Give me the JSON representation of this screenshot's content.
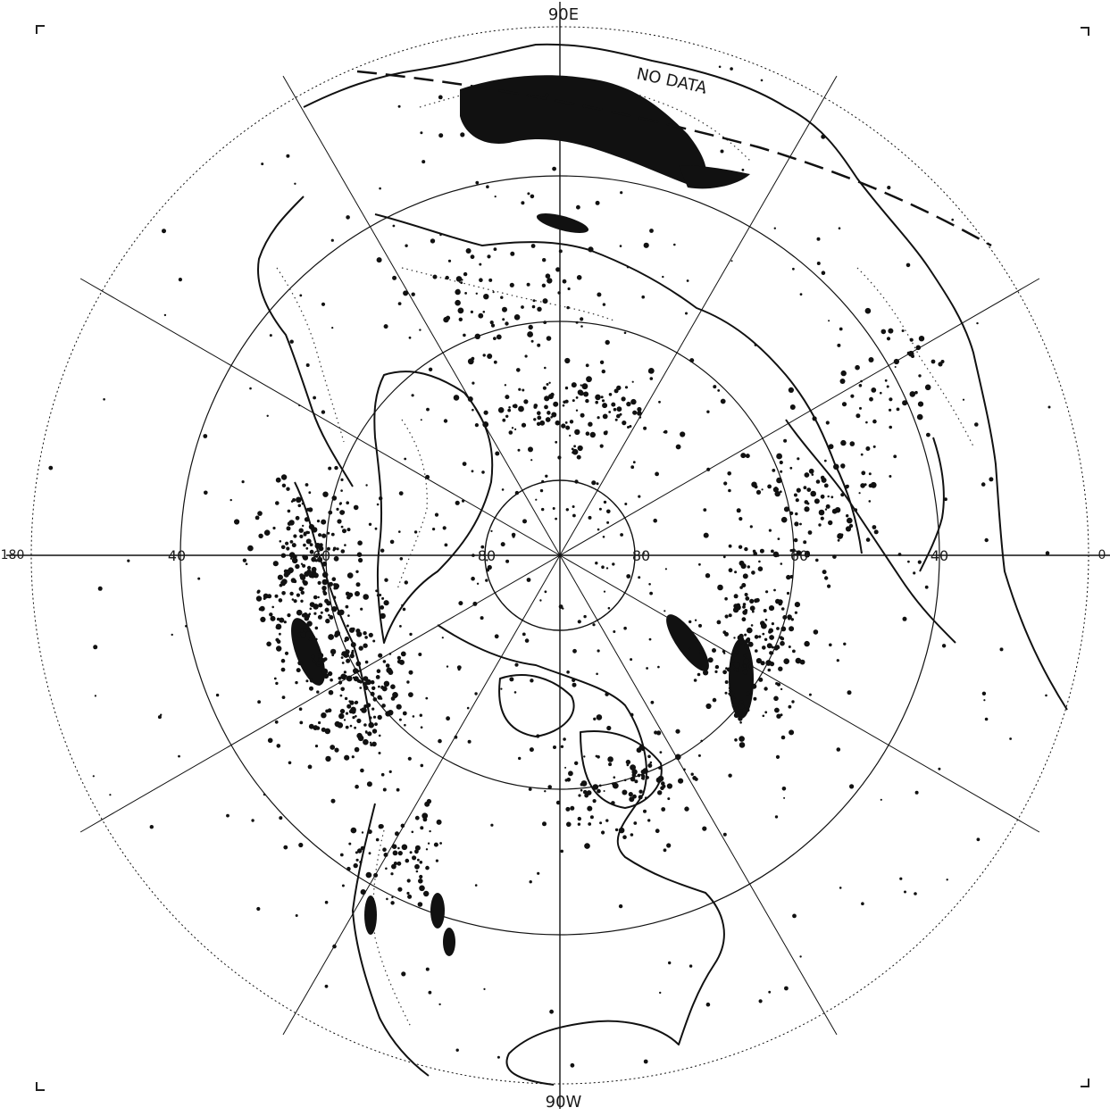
{
  "map": {
    "labels": {
      "top": "90E",
      "bottom": "90W",
      "no_data": "NO DATA",
      "lat_40_left": "40",
      "lat_40_right": "40",
      "lat_60_left": "60",
      "lat_60_right": "60",
      "lat_80_left": "80",
      "lat_80_right": "80",
      "edge_left": "180",
      "edge_right": "0"
    },
    "graticule": {
      "latitude_circles_deg": [
        80,
        60,
        40,
        20
      ],
      "meridian_spacing_deg": 30
    },
    "colors": {
      "ink": "#111111",
      "background": "#ffffff"
    }
  }
}
